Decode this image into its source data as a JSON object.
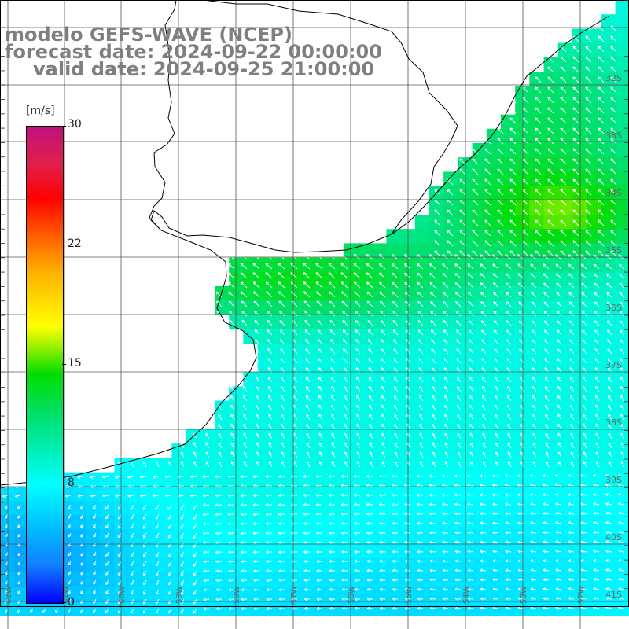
{
  "title": {
    "line1": "modelo GEFS-WAVE (NCEP)",
    "line2": "forecast date: 2024-09-22 00:00:00",
    "line3": "valid date: 2024-09-25 21:00:00"
  },
  "colorbar": {
    "unit": "[m/s]",
    "ticks": [
      "30",
      "22",
      "15",
      "8",
      "0"
    ],
    "tick_values": [
      30,
      22,
      15,
      8,
      0
    ],
    "min": 0,
    "max": 30
  },
  "map": {
    "lat_labels": [
      "32S",
      "33S",
      "34S",
      "35S",
      "36S",
      "37S",
      "38S",
      "39S",
      "40S",
      "41S"
    ],
    "lon_labels": [
      "62W",
      "61W",
      "60W",
      "59W",
      "58W",
      "57W",
      "56W",
      "55W",
      "54W",
      "53W",
      "52W"
    ],
    "colors": {
      "land": "#ffffff",
      "coast": "#000000",
      "grid": "#555555",
      "arrow": "#ffffff"
    }
  }
}
